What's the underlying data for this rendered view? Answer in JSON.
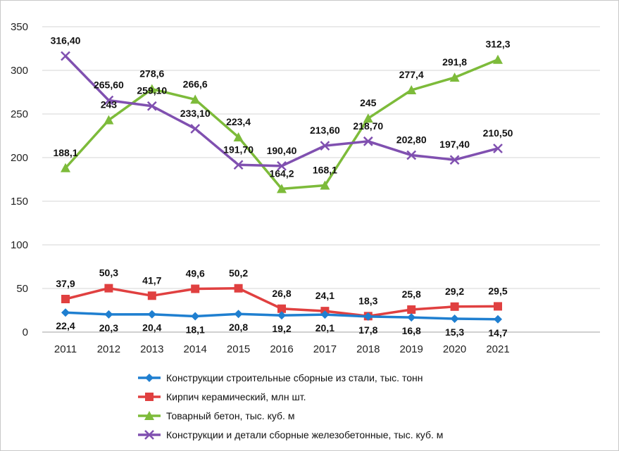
{
  "chart_data": {
    "type": "line",
    "categories": [
      "2011",
      "2012",
      "2013",
      "2014",
      "2015",
      "2016",
      "2017",
      "2018",
      "2019",
      "2020",
      "2021"
    ],
    "ylim": [
      0,
      350
    ],
    "yticks": [
      0,
      50,
      100,
      150,
      200,
      250,
      300,
      350
    ],
    "grid": true,
    "legend_position": "bottom",
    "series": [
      {
        "name": "Конструкции строительные сборные из стали, тыс. тонн",
        "color": "#1f7fd0",
        "marker": "diamond",
        "label_position": "below",
        "values": [
          22.4,
          20.3,
          20.4,
          18.1,
          20.8,
          19.2,
          20.1,
          17.8,
          16.8,
          15.3,
          14.7
        ],
        "labels": [
          "22,4",
          "20,3",
          "20,4",
          "18,1",
          "20,8",
          "19,2",
          "20,1",
          "17,8",
          "16,8",
          "15,3",
          "14,7"
        ]
      },
      {
        "name": "Кирпич керамический, млн шт.",
        "color": "#e04040",
        "marker": "square",
        "label_position": "above",
        "values": [
          37.9,
          50.3,
          41.7,
          49.6,
          50.2,
          26.8,
          24.1,
          18.3,
          25.8,
          29.2,
          29.5
        ],
        "labels": [
          "37,9",
          "50,3",
          "41,7",
          "49,6",
          "50,2",
          "26,8",
          "24,1",
          "18,3",
          "25,8",
          "29,2",
          "29,5"
        ]
      },
      {
        "name": "Товарный бетон, тыс. куб. м",
        "color": "#7dbb3a",
        "marker": "triangle",
        "label_position": "above",
        "values": [
          188.1,
          243,
          278.6,
          266.6,
          223.4,
          164.2,
          168.1,
          245,
          277.4,
          291.8,
          312.3
        ],
        "labels": [
          "188,1",
          "243",
          "278,6",
          "266,6",
          "223,4",
          "164,2",
          "168,1",
          "245",
          "277,4",
          "291,8",
          "312,3"
        ]
      },
      {
        "name": "Конструкции и детали сборные железобетонные, тыс. куб. м",
        "color": "#8050b0",
        "marker": "x",
        "label_position": "above",
        "values": [
          316.4,
          265.6,
          259.1,
          233.1,
          191.7,
          190.4,
          213.6,
          218.7,
          202.8,
          197.4,
          210.5
        ],
        "labels": [
          "316,40",
          "265,60",
          "259,10",
          "233,10",
          "191,70",
          "190,40",
          "213,60",
          "218,70",
          "202,80",
          "197,40",
          "210,50"
        ]
      }
    ]
  }
}
